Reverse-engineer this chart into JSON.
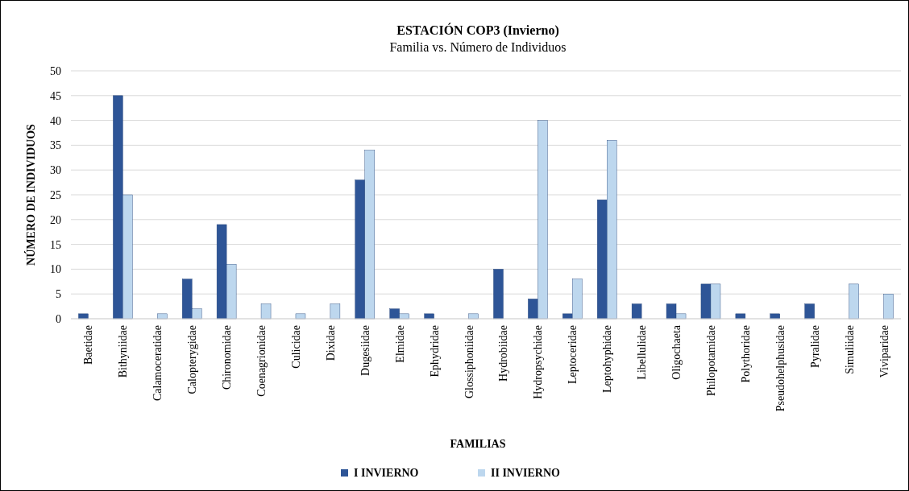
{
  "chart_data": {
    "type": "bar",
    "title": "ESTACIÓN COP3 (Invierno)",
    "subtitle": "Familia vs. Número de Individuos",
    "xlabel": "FAMILIAS",
    "ylabel": "NÚMERO DE INDIVIDUOS",
    "categories": [
      "Baetidae",
      "Bithyniidae",
      "Calamoceratidae",
      "Calopterygidae",
      "Chironomidae",
      "Coenagrionidae",
      "Culicidae",
      "Dixidae",
      "Dugesiidae",
      "Elmidae",
      "Ephydridae",
      "Glossiphoniidae",
      "Hydrobiidae",
      "Hydropsychidae",
      "Leptoceridae",
      "Leptohyphidae",
      "Libellulidae",
      "Oligochaeta",
      "Philopotamidae",
      "Polythoridae",
      "Pseudohelphusidae",
      "Pyralidae",
      "Simuliidae",
      "Viviparidae"
    ],
    "series": [
      {
        "name": "I INVIERNO",
        "color": "#2e5597",
        "values": [
          1,
          45,
          0,
          8,
          19,
          0,
          0,
          0,
          28,
          2,
          1,
          0,
          10,
          4,
          1,
          24,
          3,
          3,
          7,
          1,
          1,
          3,
          0,
          0
        ]
      },
      {
        "name": "II INVIERNO",
        "color": "#bdd7ee",
        "values": [
          0,
          25,
          1,
          2,
          11,
          3,
          1,
          3,
          34,
          1,
          0,
          1,
          0,
          40,
          8,
          36,
          0,
          1,
          7,
          0,
          0,
          0,
          7,
          5
        ]
      }
    ],
    "ylim": [
      0,
      50
    ],
    "yticks": [
      0,
      5,
      10,
      15,
      20,
      25,
      30,
      35,
      40,
      45,
      50
    ],
    "grid": "y",
    "legend": "bottom"
  }
}
